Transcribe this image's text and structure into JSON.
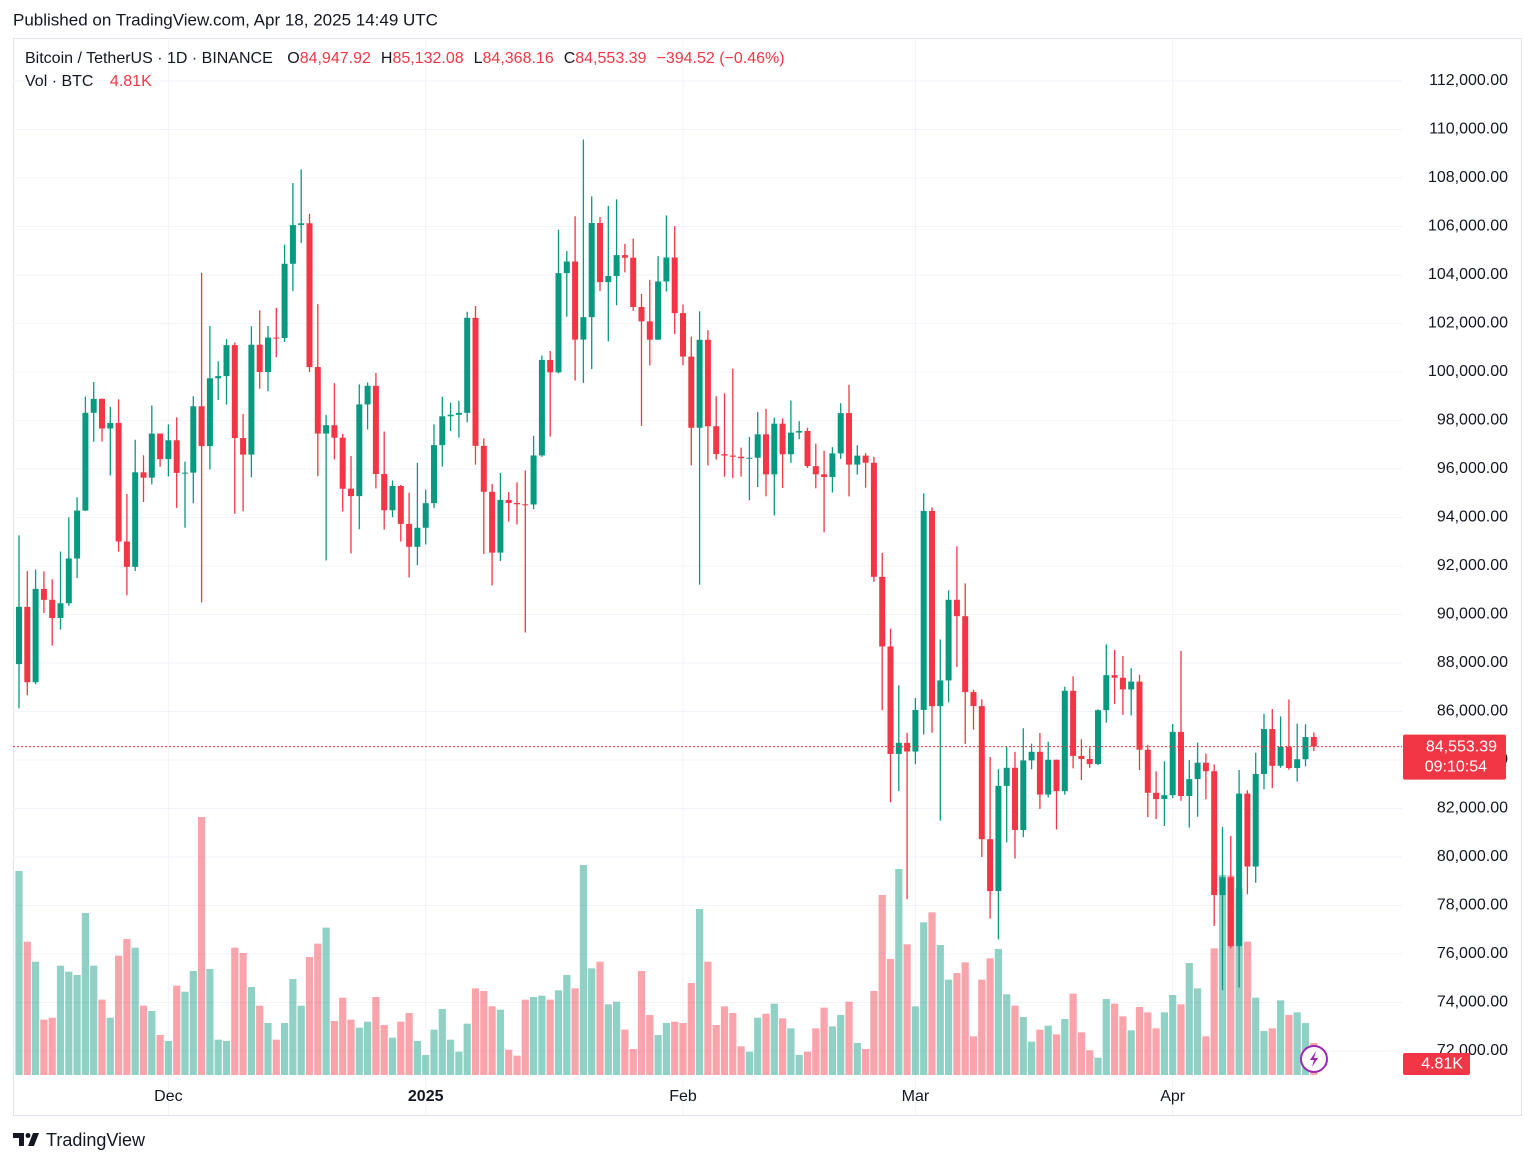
{
  "chart_data": {
    "type": "candlestick",
    "published": "Published on TradingView.com, Apr 18, 2025 14:49 UTC",
    "brand": "TradingView",
    "title": "Bitcoin / TetherUS · 1D · BINANCE",
    "ohlc_legend": [
      {
        "key": "O",
        "text": "84,947.92"
      },
      {
        "key": "H",
        "text": "85,132.08"
      },
      {
        "key": "L",
        "text": "84,368.16"
      },
      {
        "key": "C",
        "text": "84,553.39"
      }
    ],
    "change_label": "−394.52 (−0.46%)",
    "price_label": "84,553.39",
    "countdown": "09:10:54",
    "up_color": "#089981",
    "down_color": "#f23645",
    "grid": true,
    "ylim": [
      71010,
      113773
    ],
    "yticks": [
      {
        "value": 72000,
        "label": "72,000.00"
      },
      {
        "value": 74000,
        "label": "74,000.00"
      },
      {
        "value": 76000,
        "label": "76,000.00"
      },
      {
        "value": 78000,
        "label": "78,000.00"
      },
      {
        "value": 80000,
        "label": "80,000.00"
      },
      {
        "value": 82000,
        "label": "82,000.00"
      },
      {
        "value": 84000,
        "label": "84,000.00"
      },
      {
        "value": 86000,
        "label": "86,000.00"
      },
      {
        "value": 88000,
        "label": "88,000.00"
      },
      {
        "value": 90000,
        "label": "90,000.00"
      },
      {
        "value": 92000,
        "label": "92,000.00"
      },
      {
        "value": 94000,
        "label": "94,000.00"
      },
      {
        "value": 96000,
        "label": "96,000.00"
      },
      {
        "value": 98000,
        "label": "98,000.00"
      },
      {
        "value": 100000,
        "label": "100,000.00"
      },
      {
        "value": 102000,
        "label": "102,000.00"
      },
      {
        "value": 104000,
        "label": "104,000.00"
      },
      {
        "value": 106000,
        "label": "106,000.00"
      },
      {
        "value": 108000,
        "label": "108,000.00"
      },
      {
        "value": 110000,
        "label": "110,000.00"
      },
      {
        "value": 112000,
        "label": "112,000.00"
      }
    ],
    "categories": [
      null,
      null,
      null,
      null,
      null,
      null,
      null,
      null,
      null,
      null,
      null,
      null,
      null,
      null,
      null,
      null,
      null,
      null,
      "Dec",
      null,
      null,
      null,
      null,
      null,
      null,
      null,
      null,
      null,
      null,
      null,
      null,
      null,
      null,
      null,
      null,
      null,
      null,
      null,
      null,
      null,
      null,
      null,
      null,
      null,
      null,
      null,
      null,
      null,
      null,
      "2025",
      null,
      null,
      null,
      null,
      null,
      null,
      null,
      null,
      null,
      null,
      null,
      null,
      null,
      null,
      null,
      null,
      null,
      null,
      null,
      null,
      null,
      null,
      null,
      null,
      null,
      null,
      null,
      null,
      null,
      null,
      "Feb",
      null,
      null,
      null,
      null,
      null,
      null,
      null,
      null,
      null,
      null,
      null,
      null,
      null,
      null,
      null,
      null,
      null,
      null,
      null,
      null,
      null,
      null,
      null,
      null,
      null,
      null,
      null,
      "Mar",
      null,
      null,
      null,
      null,
      null,
      null,
      null,
      null,
      null,
      null,
      null,
      null,
      null,
      null,
      null,
      null,
      null,
      null,
      null,
      null,
      null,
      null,
      null,
      null,
      null,
      null,
      null,
      null,
      null,
      null,
      "Apr",
      null,
      null,
      null,
      null,
      null,
      null,
      null,
      null,
      null,
      null,
      null,
      null,
      null,
      null,
      null,
      null,
      null
    ],
    "open": [
      87955,
      90315,
      87206,
      91056,
      90605,
      89855,
      90464,
      92310,
      94286,
      98317,
      98892,
      97672,
      97900,
      93010,
      91965,
      95863,
      95643,
      97460,
      96407,
      97185,
      95840,
      95849,
      98587,
      96945,
      99740,
      99831,
      101109,
      97276,
      96593,
      101125,
      100000,
      101420,
      101400,
      104463,
      106058,
      106133,
      100204,
      97461,
      97805,
      97291,
      95186,
      94881,
      98663,
      99430,
      95792,
      94299,
      95300,
      93738,
      92792,
      93576,
      94591,
      96984,
      98174,
      98236,
      98314,
      102235,
      96954,
      95060,
      92552,
      94726,
      94599,
      94545,
      94536,
      96560,
      100497,
      99987,
      104077,
      104556,
      101335,
      102260,
      106143,
      103706,
      103960,
      104820,
      104714,
      102682,
      102087,
      101332,
      103733,
      104722,
      102429,
      100635,
      97700,
      101328,
      97763,
      96612,
      96554,
      96506,
      96444,
      96462,
      97430,
      95778,
      97869,
      96608,
      97500,
      97569,
      96118,
      95780,
      95671,
      96644,
      98305,
      96181,
      96551,
      96258,
      91552,
      88680,
      84250,
      84708,
      84349,
      86064,
      94270,
      86220,
      87281,
      90606,
      89931,
      86801,
      86222,
      80734,
      78595,
      82932,
      83680,
      81115,
      83983,
      84338,
      82574,
      84010,
      82715,
      86854,
      84167,
      84043,
      83832,
      86054,
      87498,
      87392,
      86909,
      87232,
      84424,
      82648,
      82389,
      82550,
      85158,
      82516,
      83213,
      83889,
      83537,
      78430,
      79163,
      76322,
      82615,
      79607,
      83423,
      85276,
      83760,
      84542,
      83669,
      84033,
      84947.92
    ],
    "high": [
      93265,
      91790,
      91850,
      91779,
      91449,
      92594,
      94002,
      94831,
      98984,
      99588,
      98908,
      98564,
      98871,
      94973,
      97208,
      96564,
      98619,
      97463,
      97836,
      98130,
      96305,
      99000,
      104088,
      101898,
      100439,
      101351,
      101215,
      98270,
      101888,
      102540,
      101895,
      102650,
      105250,
      107793,
      108353,
      106524,
      102800,
      98233,
      99540,
      97448,
      96538,
      99487,
      99569,
      99963,
      97544,
      95525,
      95340,
      95024,
      96250,
      95151,
      97839,
      98976,
      98734,
      98813,
      102482,
      102724,
      97258,
      95382,
      95837,
      95050,
      95450,
      95940,
      97371,
      100681,
      100866,
      105865,
      104988,
      106422,
      109588,
      107240,
      106394,
      106850,
      107120,
      105286,
      105500,
      103221,
      103800,
      104782,
      106457,
      106012,
      102783,
      101456,
      102500,
      101729,
      99000,
      99120,
      100137,
      96880,
      97323,
      98345,
      98478,
      98119,
      98083,
      98826,
      97972,
      97704,
      97046,
      96753,
      96899,
      98711,
      99475,
      96980,
      96650,
      96500,
      92540,
      89414,
      87078,
      85120,
      86558,
      95000,
      94416,
      88967,
      90998,
      92810,
      91283,
      86897,
      86500,
      84123,
      83617,
      84539,
      84336,
      85310,
      84676,
      85117,
      84756,
      84021,
      87021,
      87453,
      84850,
      84513,
      86094,
      88765,
      88539,
      88292,
      87786,
      87515,
      84624,
      83534,
      83943,
      85487,
      88500,
      83998,
      84720,
      84266,
      83817,
      81243,
      80867,
      83588,
      82753,
      84300,
      85905,
      86100,
      85799,
      86496,
      85500,
      85470,
      85132.08
    ],
    "low": [
      86127,
      86668,
      87124,
      90056,
      88722,
      89376,
      90357,
      91500,
      94266,
      97122,
      97136,
      95734,
      92600,
      90791,
      91792,
      94640,
      95364,
      96092,
      95693,
      94395,
      93578,
      94587,
      90500,
      95981,
      98844,
      98657,
      94150,
      94256,
      95658,
      99311,
      99205,
      100609,
      101237,
      103333,
      105321,
      100000,
      95700,
      92232,
      96398,
      94250,
      92520,
      93515,
      97632,
      95199,
      93500,
      94014,
      93009,
      91530,
      92034,
      92888,
      94392,
      96100,
      97562,
      97291,
      97926,
      96181,
      92500,
      91203,
      92206,
      93831,
      93711,
      89256,
      94346,
      96500,
      97335,
      99950,
      102277,
      99651,
      99550,
      100119,
      103339,
      101262,
      102750,
      104106,
      102520,
      97777,
      100272,
      101328,
      103320,
      101560,
      100279,
      96150,
      91231,
      96150,
      96387,
      95676,
      95620,
      95688,
      94713,
      95256,
      94876,
      94088,
      95217,
      96252,
      97223,
      96046,
      95205,
      93388,
      95029,
      96415,
      94871,
      95770,
      95227,
      91349,
      86050,
      82256,
      82716,
      78258,
      83824,
      85050,
      85117,
      81500,
      86379,
      87836,
      84667,
      85248,
      80000,
      77459,
      76606,
      80607,
      79939,
      80818,
      83618,
      81981,
      82456,
      81134,
      82569,
      83655,
      83175,
      83674,
      83794,
      85541,
      86310,
      85861,
      85837,
      83585,
      81644,
      81565,
      81279,
      82429,
      82320,
      81211,
      81659,
      82379,
      77153,
      74508,
      76239,
      74620,
      78464,
      78936,
      82792,
      82843,
      83678,
      83600,
      83111,
      83736,
      84368.16
    ],
    "close": [
      90315,
      87206,
      91056,
      90605,
      89855,
      90464,
      92310,
      94286,
      98317,
      98892,
      97672,
      97900,
      93010,
      91965,
      95863,
      95643,
      97460,
      96407,
      97185,
      95840,
      95849,
      98587,
      96945,
      99740,
      99831,
      101109,
      97276,
      96593,
      101125,
      100000,
      101420,
      101400,
      104463,
      106058,
      106133,
      100204,
      97461,
      97805,
      97291,
      95186,
      94881,
      98663,
      99430,
      95792,
      94299,
      95300,
      93738,
      92792,
      93576,
      94591,
      96984,
      98174,
      98236,
      98314,
      102235,
      96954,
      95060,
      92552,
      94726,
      94599,
      94545,
      94536,
      96560,
      100497,
      99987,
      104077,
      104556,
      101335,
      102260,
      106143,
      103706,
      103960,
      104820,
      104714,
      102682,
      102087,
      101332,
      103733,
      104722,
      102429,
      100635,
      97700,
      101328,
      97763,
      96612,
      96554,
      96506,
      96444,
      96462,
      97430,
      95778,
      97869,
      96608,
      97500,
      97569,
      96118,
      95780,
      95671,
      96644,
      98305,
      96181,
      96551,
      96258,
      91552,
      88680,
      84250,
      84708,
      84349,
      86064,
      94270,
      86220,
      87281,
      90606,
      89931,
      86801,
      86222,
      80734,
      78595,
      82932,
      83680,
      81115,
      83983,
      84338,
      82574,
      84010,
      82715,
      86854,
      84167,
      84043,
      83832,
      86054,
      87498,
      87392,
      86909,
      87232,
      84424,
      82648,
      82389,
      82550,
      85158,
      82516,
      83213,
      83889,
      83537,
      78430,
      79163,
      76322,
      82615,
      79607,
      83423,
      85276,
      83760,
      84542,
      83669,
      84033,
      84947.92,
      84553.39
    ],
    "volume": {
      "name": "Vol · BTC",
      "last_label": "4.81K",
      "values": [
        30600,
        20000,
        17000,
        8300,
        8600,
        16400,
        15500,
        15000,
        24300,
        16400,
        11300,
        8600,
        17900,
        20400,
        19100,
        10400,
        9600,
        6000,
        5100,
        13400,
        12500,
        15600,
        38700,
        15900,
        5300,
        5100,
        19100,
        18300,
        13200,
        10400,
        7800,
        5300,
        7800,
        14400,
        10400,
        17700,
        19700,
        22100,
        8100,
        11600,
        8300,
        7100,
        8000,
        11700,
        7500,
        5600,
        8000,
        9300,
        5100,
        3000,
        6800,
        9900,
        5300,
        3500,
        7700,
        13000,
        12600,
        10300,
        9800,
        3800,
        2900,
        11300,
        11700,
        11900,
        11300,
        12700,
        15000,
        13000,
        31500,
        16000,
        17000,
        10600,
        11000,
        6800,
        3900,
        15600,
        9000,
        6000,
        7800,
        8000,
        7800,
        13800,
        24900,
        17000,
        7500,
        10300,
        9300,
        4300,
        3500,
        8600,
        9200,
        10700,
        8500,
        7000,
        3000,
        3500,
        7000,
        10100,
        7300,
        9000,
        11000,
        4800,
        3900,
        12600,
        27000,
        17400,
        30900,
        19600,
        10300,
        22900,
        24400,
        19500,
        14300,
        15300,
        16900,
        5800,
        14300,
        17500,
        18900,
        12100,
        10400,
        8700,
        5000,
        6800,
        7400,
        6100,
        8400,
        12200,
        6400,
        3700,
        2600,
        11400,
        10700,
        8800,
        6700,
        10200,
        9400,
        7000,
        9400,
        12000,
        10600,
        16800,
        13000,
        5800,
        19000,
        30000,
        29900,
        28000,
        20000,
        11600,
        6600,
        7000,
        11200,
        9000,
        9400,
        7800,
        4810
      ]
    }
  }
}
